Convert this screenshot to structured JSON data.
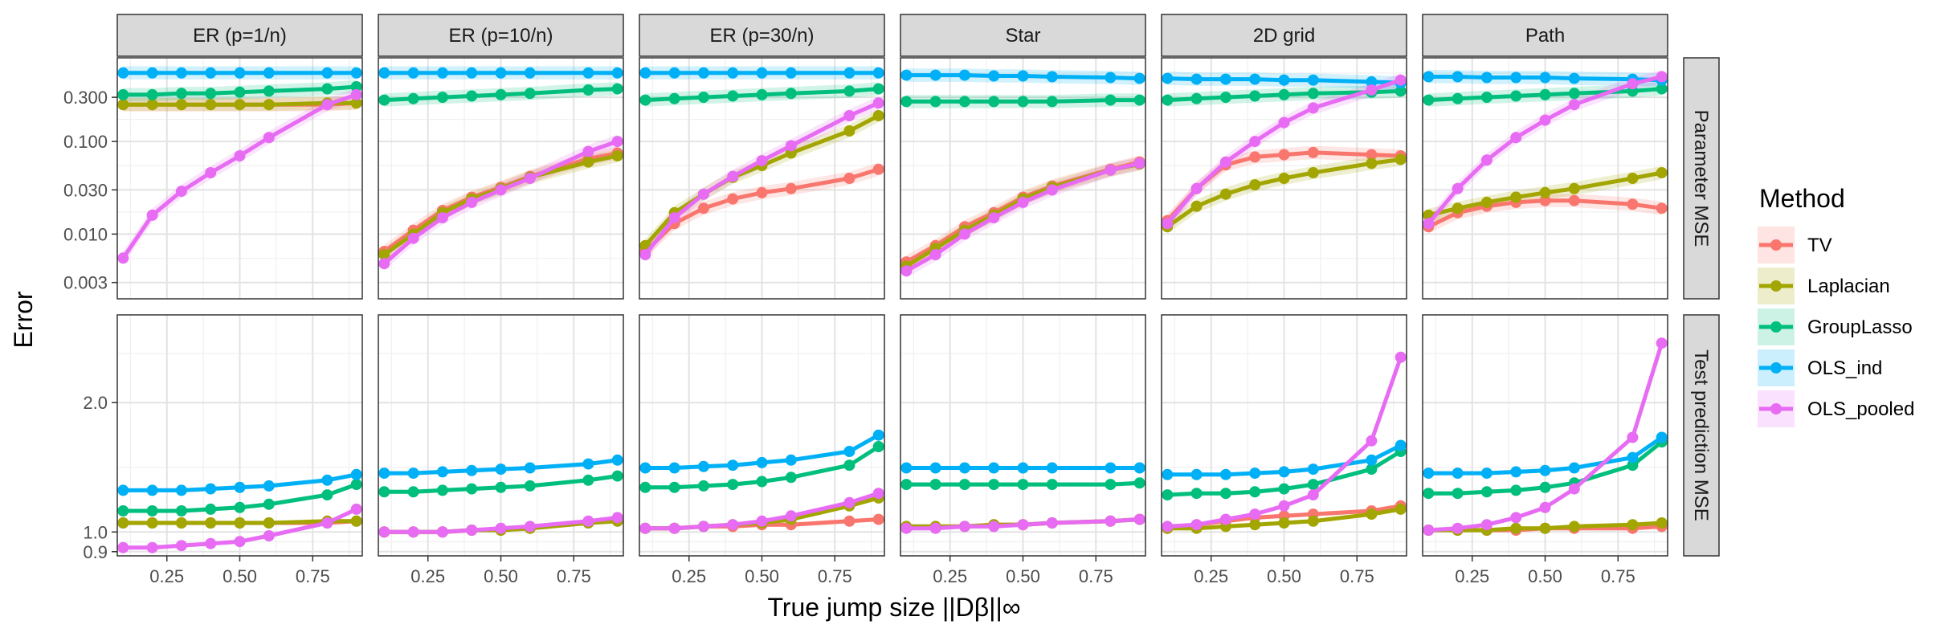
{
  "chart_data": {
    "type": "line",
    "title": "",
    "ylabel": "Error",
    "xlabel": "True jump size  ||Dβ||∞",
    "x": [
      0.1,
      0.2,
      0.3,
      0.4,
      0.5,
      0.6,
      0.8,
      0.9
    ],
    "xticks": [
      0.25,
      0.5,
      0.75
    ],
    "xtick_labels": [
      "0.25",
      "0.50",
      "0.75"
    ],
    "xlim": [
      0.08,
      0.92
    ],
    "facet_columns": [
      "ER (p=1/n)",
      "ER (p=10/n)",
      "ER (p=30/n)",
      "Star",
      "2D grid",
      "Path"
    ],
    "rows": [
      {
        "label": "Parameter MSE",
        "scale": "log10",
        "ylim": [
          0.002,
          0.8
        ],
        "yticks": [
          0.003,
          0.01,
          0.03,
          0.1,
          0.3
        ],
        "ytick_labels": [
          "0.003",
          "0.010",
          "0.030",
          "0.100",
          "0.300"
        ],
        "panels": [
          {
            "facet": "ER (p=1/n)",
            "series": {
              "TV": [
                0.25,
                0.25,
                0.25,
                0.25,
                0.25,
                0.25,
                0.25,
                0.26
              ],
              "Laplacian": [
                0.25,
                0.25,
                0.25,
                0.25,
                0.25,
                0.25,
                0.26,
                0.26
              ],
              "GroupLasso": [
                0.32,
                0.32,
                0.33,
                0.33,
                0.34,
                0.35,
                0.37,
                0.39
              ],
              "OLS_ind": [
                0.55,
                0.55,
                0.55,
                0.55,
                0.55,
                0.55,
                0.55,
                0.55
              ],
              "OLS_pooled": [
                0.0055,
                0.016,
                0.029,
                0.046,
                0.07,
                0.11,
                0.25,
                0.32
              ]
            }
          },
          {
            "facet": "ER (p=10/n)",
            "series": {
              "TV": [
                0.0065,
                0.011,
                0.018,
                0.025,
                0.032,
                0.042,
                0.065,
                0.075
              ],
              "Laplacian": [
                0.006,
                0.01,
                0.017,
                0.024,
                0.031,
                0.041,
                0.06,
                0.07
              ],
              "GroupLasso": [
                0.28,
                0.29,
                0.3,
                0.31,
                0.32,
                0.33,
                0.36,
                0.37
              ],
              "OLS_ind": [
                0.55,
                0.55,
                0.55,
                0.55,
                0.55,
                0.55,
                0.55,
                0.55
              ],
              "OLS_pooled": [
                0.0048,
                0.009,
                0.015,
                0.022,
                0.03,
                0.04,
                0.078,
                0.1
              ]
            }
          },
          {
            "facet": "ER (p=30/n)",
            "series": {
              "TV": [
                0.0065,
                0.013,
                0.019,
                0.024,
                0.028,
                0.031,
                0.04,
                0.05
              ],
              "Laplacian": [
                0.0075,
                0.017,
                0.027,
                0.041,
                0.055,
                0.075,
                0.13,
                0.19
              ],
              "GroupLasso": [
                0.28,
                0.29,
                0.3,
                0.31,
                0.32,
                0.33,
                0.35,
                0.37
              ],
              "OLS_ind": [
                0.55,
                0.55,
                0.55,
                0.55,
                0.55,
                0.55,
                0.55,
                0.55
              ],
              "OLS_pooled": [
                0.006,
                0.015,
                0.027,
                0.042,
                0.062,
                0.09,
                0.19,
                0.26
              ]
            }
          },
          {
            "facet": "Star",
            "series": {
              "TV": [
                0.005,
                0.0075,
                0.012,
                0.017,
                0.025,
                0.033,
                0.05,
                0.06
              ],
              "Laplacian": [
                0.0045,
                0.007,
                0.011,
                0.016,
                0.024,
                0.032,
                0.049,
                0.057
              ],
              "GroupLasso": [
                0.27,
                0.27,
                0.27,
                0.27,
                0.27,
                0.27,
                0.28,
                0.28
              ],
              "OLS_ind": [
                0.52,
                0.52,
                0.52,
                0.51,
                0.51,
                0.5,
                0.49,
                0.48
              ],
              "OLS_pooled": [
                0.004,
                0.006,
                0.01,
                0.015,
                0.022,
                0.03,
                0.049,
                0.058
              ]
            }
          },
          {
            "facet": "2D grid",
            "series": {
              "TV": [
                0.014,
                0.031,
                0.056,
                0.068,
                0.072,
                0.076,
                0.072,
                0.07
              ],
              "Laplacian": [
                0.012,
                0.02,
                0.027,
                0.034,
                0.04,
                0.046,
                0.058,
                0.064
              ],
              "GroupLasso": [
                0.28,
                0.29,
                0.3,
                0.31,
                0.32,
                0.33,
                0.34,
                0.35
              ],
              "OLS_ind": [
                0.48,
                0.47,
                0.47,
                0.47,
                0.46,
                0.46,
                0.44,
                0.43
              ],
              "OLS_pooled": [
                0.013,
                0.031,
                0.06,
                0.1,
                0.16,
                0.23,
                0.36,
                0.46
              ]
            }
          },
          {
            "facet": "Path",
            "series": {
              "TV": [
                0.012,
                0.017,
                0.02,
                0.022,
                0.023,
                0.023,
                0.021,
                0.019
              ],
              "Laplacian": [
                0.016,
                0.019,
                0.022,
                0.025,
                0.028,
                0.031,
                0.04,
                0.046
              ],
              "GroupLasso": [
                0.28,
                0.29,
                0.3,
                0.31,
                0.32,
                0.33,
                0.35,
                0.37
              ],
              "OLS_ind": [
                0.5,
                0.5,
                0.49,
                0.49,
                0.49,
                0.48,
                0.47,
                0.46
              ],
              "OLS_pooled": [
                0.013,
                0.031,
                0.063,
                0.11,
                0.17,
                0.25,
                0.42,
                0.5
              ]
            }
          }
        ]
      },
      {
        "label": "Test prediction MSE",
        "scale": "log10",
        "ylim": [
          0.88,
          3.2
        ],
        "yticks": [
          0.9,
          1.0,
          2.0
        ],
        "ytick_labels": [
          "0.9",
          "1.0",
          "2.0"
        ],
        "panels": [
          {
            "facet": "ER (p=1/n)",
            "series": {
              "TV": [
                1.05,
                1.05,
                1.05,
                1.05,
                1.05,
                1.05,
                1.05,
                1.06
              ],
              "Laplacian": [
                1.05,
                1.05,
                1.05,
                1.05,
                1.05,
                1.05,
                1.06,
                1.06
              ],
              "GroupLasso": [
                1.12,
                1.12,
                1.12,
                1.13,
                1.14,
                1.16,
                1.22,
                1.29
              ],
              "OLS_ind": [
                1.25,
                1.25,
                1.25,
                1.26,
                1.27,
                1.28,
                1.32,
                1.36
              ],
              "OLS_pooled": [
                0.92,
                0.92,
                0.93,
                0.94,
                0.95,
                0.98,
                1.05,
                1.13
              ]
            }
          },
          {
            "facet": "ER (p=10/n)",
            "series": {
              "TV": [
                1.0,
                1.0,
                1.0,
                1.01,
                1.01,
                1.02,
                1.05,
                1.06
              ],
              "Laplacian": [
                1.0,
                1.0,
                1.0,
                1.01,
                1.01,
                1.02,
                1.05,
                1.06
              ],
              "GroupLasso": [
                1.24,
                1.24,
                1.25,
                1.26,
                1.27,
                1.28,
                1.32,
                1.35
              ],
              "OLS_ind": [
                1.37,
                1.37,
                1.38,
                1.39,
                1.4,
                1.41,
                1.44,
                1.47
              ],
              "OLS_pooled": [
                1.0,
                1.0,
                1.0,
                1.01,
                1.02,
                1.03,
                1.06,
                1.08
              ]
            }
          },
          {
            "facet": "ER (p=30/n)",
            "series": {
              "TV": [
                1.02,
                1.02,
                1.03,
                1.03,
                1.04,
                1.04,
                1.06,
                1.07
              ],
              "Laplacian": [
                1.02,
                1.02,
                1.03,
                1.04,
                1.05,
                1.07,
                1.15,
                1.2
              ],
              "GroupLasso": [
                1.27,
                1.27,
                1.28,
                1.29,
                1.31,
                1.34,
                1.43,
                1.58
              ],
              "OLS_ind": [
                1.41,
                1.41,
                1.42,
                1.43,
                1.45,
                1.47,
                1.54,
                1.68
              ],
              "OLS_pooled": [
                1.02,
                1.02,
                1.03,
                1.04,
                1.06,
                1.09,
                1.17,
                1.23
              ]
            }
          },
          {
            "facet": "Star",
            "series": {
              "TV": [
                1.03,
                1.03,
                1.03,
                1.04,
                1.04,
                1.05,
                1.06,
                1.07
              ],
              "Laplacian": [
                1.03,
                1.03,
                1.03,
                1.04,
                1.04,
                1.05,
                1.06,
                1.07
              ],
              "GroupLasso": [
                1.29,
                1.29,
                1.29,
                1.29,
                1.29,
                1.29,
                1.29,
                1.3
              ],
              "OLS_ind": [
                1.41,
                1.41,
                1.41,
                1.41,
                1.41,
                1.41,
                1.41,
                1.41
              ],
              "OLS_pooled": [
                1.02,
                1.02,
                1.03,
                1.03,
                1.04,
                1.05,
                1.06,
                1.07
              ]
            }
          },
          {
            "facet": "2D grid",
            "series": {
              "TV": [
                1.02,
                1.04,
                1.06,
                1.08,
                1.09,
                1.1,
                1.12,
                1.15
              ],
              "Laplacian": [
                1.02,
                1.02,
                1.03,
                1.04,
                1.05,
                1.06,
                1.1,
                1.13
              ],
              "GroupLasso": [
                1.22,
                1.23,
                1.23,
                1.24,
                1.26,
                1.29,
                1.4,
                1.54
              ],
              "OLS_ind": [
                1.36,
                1.36,
                1.36,
                1.37,
                1.38,
                1.4,
                1.47,
                1.59
              ],
              "OLS_pooled": [
                1.03,
                1.04,
                1.07,
                1.1,
                1.15,
                1.22,
                1.63,
                2.55
              ]
            }
          },
          {
            "facet": "Path",
            "series": {
              "TV": [
                1.01,
                1.01,
                1.01,
                1.01,
                1.02,
                1.02,
                1.02,
                1.03
              ],
              "Laplacian": [
                1.01,
                1.01,
                1.01,
                1.02,
                1.02,
                1.03,
                1.04,
                1.05
              ],
              "GroupLasso": [
                1.23,
                1.23,
                1.24,
                1.25,
                1.27,
                1.3,
                1.43,
                1.62
              ],
              "OLS_ind": [
                1.37,
                1.37,
                1.37,
                1.38,
                1.39,
                1.41,
                1.49,
                1.66
              ],
              "OLS_pooled": [
                1.01,
                1.02,
                1.04,
                1.08,
                1.14,
                1.26,
                1.66,
                2.75
              ]
            }
          }
        ]
      }
    ],
    "legend": {
      "title": "Method",
      "position": "right",
      "entries": [
        "TV",
        "Laplacian",
        "GroupLasso",
        "OLS_ind",
        "OLS_pooled"
      ]
    },
    "colors": {
      "TV": "#F8766D",
      "Laplacian": "#A3A500",
      "GroupLasso": "#00BF7D",
      "OLS_ind": "#00B0F6",
      "OLS_pooled": "#E76BF3"
    }
  }
}
